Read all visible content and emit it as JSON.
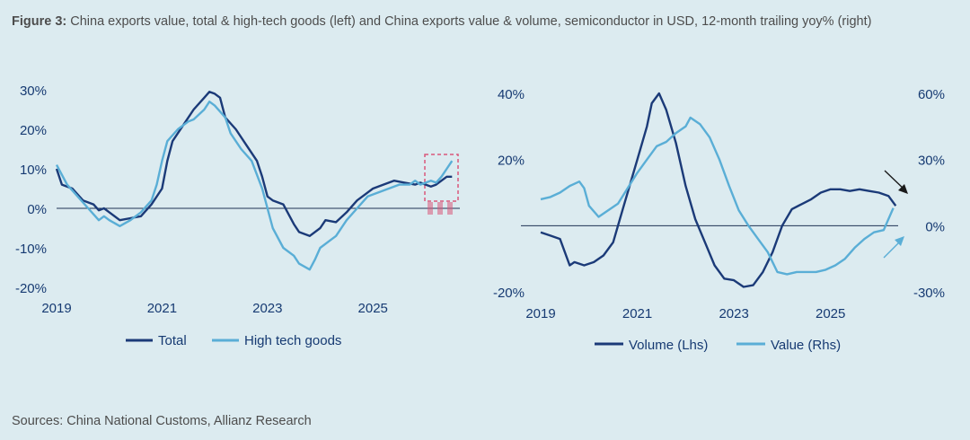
{
  "figure": {
    "label": "Figure 3:",
    "title": "China exports value, total & high-tech goods (left) and China exports value & volume, semiconductor in USD, 12-month trailing yoy% (right)",
    "source": "Sources: China National Customs, Allianz Research"
  },
  "colors": {
    "dark": "#1b3a78",
    "light": "#5aaed6",
    "annot": "#d9577a",
    "zero": "#1f3355"
  },
  "chart_data": [
    {
      "type": "line",
      "ylim": [
        -20,
        30
      ],
      "xlim": [
        2019,
        2026.7
      ],
      "y_ticks": [
        {
          "v": 30,
          "t": "30%"
        },
        {
          "v": 20,
          "t": "20%"
        },
        {
          "v": 10,
          "t": "10%"
        },
        {
          "v": 0,
          "t": "0%"
        },
        {
          "v": -10,
          "t": "-10%"
        },
        {
          "v": -20,
          "t": "-20%"
        }
      ],
      "x_ticks": [
        {
          "v": 2019,
          "t": "2019"
        },
        {
          "v": 2021,
          "t": "2021"
        },
        {
          "v": 2023,
          "t": "2023"
        },
        {
          "v": 2025,
          "t": "2025"
        }
      ],
      "legend_position": "bottom",
      "annotation": "dashed box highlighting the latest values",
      "series": [
        {
          "name": "Total",
          "color": "dark",
          "points": [
            [
              2019.0,
              10
            ],
            [
              2019.1,
              6
            ],
            [
              2019.3,
              5
            ],
            [
              2019.5,
              2
            ],
            [
              2019.7,
              1
            ],
            [
              2019.8,
              -0.5
            ],
            [
              2019.9,
              0
            ],
            [
              2020.0,
              -1
            ],
            [
              2020.2,
              -3
            ],
            [
              2020.4,
              -2.5
            ],
            [
              2020.6,
              -2
            ],
            [
              2020.8,
              1
            ],
            [
              2021.0,
              5
            ],
            [
              2021.1,
              12
            ],
            [
              2021.2,
              17
            ],
            [
              2021.4,
              21
            ],
            [
              2021.6,
              25
            ],
            [
              2021.8,
              28
            ],
            [
              2021.9,
              29.5
            ],
            [
              2022.0,
              29
            ],
            [
              2022.1,
              28
            ],
            [
              2022.2,
              23
            ],
            [
              2022.4,
              20
            ],
            [
              2022.6,
              16
            ],
            [
              2022.8,
              12
            ],
            [
              2022.9,
              8
            ],
            [
              2023.0,
              3
            ],
            [
              2023.1,
              2
            ],
            [
              2023.3,
              1
            ],
            [
              2023.5,
              -4
            ],
            [
              2023.6,
              -6
            ],
            [
              2023.8,
              -7
            ],
            [
              2024.0,
              -5
            ],
            [
              2024.1,
              -3
            ],
            [
              2024.3,
              -3.5
            ],
            [
              2024.5,
              -1
            ],
            [
              2024.7,
              2
            ],
            [
              2024.9,
              4
            ],
            [
              2025.0,
              5
            ],
            [
              2025.2,
              6
            ],
            [
              2025.4,
              7
            ],
            [
              2025.6,
              6.5
            ],
            [
              2025.8,
              6
            ],
            [
              2025.9,
              6.5
            ],
            [
              2026.0,
              6
            ],
            [
              2026.1,
              5.5
            ],
            [
              2026.2,
              6
            ],
            [
              2026.3,
              7
            ],
            [
              2026.4,
              8
            ],
            [
              2026.5,
              8
            ]
          ]
        },
        {
          "name": "High tech goods",
          "color": "light",
          "points": [
            [
              2019.0,
              11
            ],
            [
              2019.2,
              6
            ],
            [
              2019.4,
              3
            ],
            [
              2019.6,
              0
            ],
            [
              2019.8,
              -3
            ],
            [
              2019.9,
              -2
            ],
            [
              2020.0,
              -3
            ],
            [
              2020.2,
              -4.5
            ],
            [
              2020.4,
              -3
            ],
            [
              2020.6,
              -1
            ],
            [
              2020.8,
              2
            ],
            [
              2020.9,
              6
            ],
            [
              2021.0,
              12
            ],
            [
              2021.1,
              17
            ],
            [
              2021.3,
              20
            ],
            [
              2021.5,
              22
            ],
            [
              2021.6,
              22.5
            ],
            [
              2021.8,
              25
            ],
            [
              2021.9,
              27
            ],
            [
              2022.0,
              26
            ],
            [
              2022.2,
              23
            ],
            [
              2022.3,
              19
            ],
            [
              2022.5,
              15
            ],
            [
              2022.7,
              12
            ],
            [
              2022.9,
              5
            ],
            [
              2023.0,
              0
            ],
            [
              2023.1,
              -5
            ],
            [
              2023.3,
              -10
            ],
            [
              2023.5,
              -12
            ],
            [
              2023.6,
              -14
            ],
            [
              2023.8,
              -15.5
            ],
            [
              2023.9,
              -13
            ],
            [
              2024.0,
              -10
            ],
            [
              2024.2,
              -8
            ],
            [
              2024.3,
              -7
            ],
            [
              2024.5,
              -3
            ],
            [
              2024.7,
              0
            ],
            [
              2024.9,
              3
            ],
            [
              2025.1,
              4
            ],
            [
              2025.3,
              5
            ],
            [
              2025.5,
              6
            ],
            [
              2025.7,
              6
            ],
            [
              2025.8,
              7
            ],
            [
              2025.9,
              6
            ],
            [
              2026.1,
              7
            ],
            [
              2026.2,
              6.5
            ],
            [
              2026.3,
              8
            ],
            [
              2026.4,
              10
            ],
            [
              2026.5,
              12
            ]
          ]
        }
      ]
    },
    {
      "type": "line",
      "ylim_left": [
        -20,
        40
      ],
      "ylim_right": [
        -30,
        60
      ],
      "xlim": [
        2019,
        2026.4
      ],
      "y_ticks_left": [
        {
          "v": 40,
          "t": "40%"
        },
        {
          "v": 20,
          "t": "20%"
        },
        {
          "v": -20,
          "t": "-20%"
        }
      ],
      "y_ticks_right": [
        {
          "v": 60,
          "t": "60%"
        },
        {
          "v": 30,
          "t": "30%"
        },
        {
          "v": 0,
          "t": "0%"
        },
        {
          "v": -30,
          "t": "-30%"
        }
      ],
      "x_ticks": [
        {
          "v": 2019,
          "t": "2019"
        },
        {
          "v": 2021,
          "t": "2021"
        },
        {
          "v": 2023,
          "t": "2023"
        },
        {
          "v": 2025,
          "t": "2025"
        }
      ],
      "legend_position": "bottom",
      "annotation": "arrows marking the latest values",
      "series": [
        {
          "name": "Volume (Lhs)",
          "color": "dark",
          "axis": "left",
          "points": [
            [
              2019.0,
              -2
            ],
            [
              2019.2,
              -3
            ],
            [
              2019.4,
              -4
            ],
            [
              2019.6,
              -12
            ],
            [
              2019.7,
              -11
            ],
            [
              2019.9,
              -12
            ],
            [
              2020.1,
              -11
            ],
            [
              2020.3,
              -9
            ],
            [
              2020.5,
              -5
            ],
            [
              2020.7,
              5
            ],
            [
              2020.9,
              15
            ],
            [
              2021.0,
              20
            ],
            [
              2021.2,
              30
            ],
            [
              2021.3,
              37
            ],
            [
              2021.45,
              40
            ],
            [
              2021.6,
              35
            ],
            [
              2021.8,
              25
            ],
            [
              2022.0,
              12
            ],
            [
              2022.2,
              2
            ],
            [
              2022.4,
              -5
            ],
            [
              2022.6,
              -12
            ],
            [
              2022.8,
              -16
            ],
            [
              2023.0,
              -16.5
            ],
            [
              2023.2,
              -18.5
            ],
            [
              2023.4,
              -18
            ],
            [
              2023.6,
              -14
            ],
            [
              2023.8,
              -8
            ],
            [
              2024.0,
              0
            ],
            [
              2024.2,
              5
            ],
            [
              2024.4,
              6.5
            ],
            [
              2024.6,
              8
            ],
            [
              2024.8,
              10
            ],
            [
              2025.0,
              11
            ],
            [
              2025.2,
              11
            ],
            [
              2025.4,
              10.5
            ],
            [
              2025.6,
              11
            ],
            [
              2025.8,
              10.5
            ],
            [
              2026.0,
              10
            ],
            [
              2026.2,
              9
            ],
            [
              2026.35,
              6
            ]
          ]
        },
        {
          "name": "Value (Rhs)",
          "color": "light",
          "axis": "right",
          "points": [
            [
              2019.0,
              12
            ],
            [
              2019.2,
              13
            ],
            [
              2019.4,
              15
            ],
            [
              2019.6,
              18
            ],
            [
              2019.8,
              20
            ],
            [
              2019.9,
              17
            ],
            [
              2020.0,
              9
            ],
            [
              2020.2,
              4
            ],
            [
              2020.4,
              7
            ],
            [
              2020.6,
              10
            ],
            [
              2020.8,
              17
            ],
            [
              2021.0,
              24
            ],
            [
              2021.2,
              30
            ],
            [
              2021.4,
              36
            ],
            [
              2021.6,
              38
            ],
            [
              2021.8,
              42
            ],
            [
              2022.0,
              45
            ],
            [
              2022.1,
              49
            ],
            [
              2022.3,
              46
            ],
            [
              2022.5,
              40
            ],
            [
              2022.7,
              30
            ],
            [
              2022.9,
              18
            ],
            [
              2023.1,
              7
            ],
            [
              2023.3,
              0
            ],
            [
              2023.5,
              -6
            ],
            [
              2023.7,
              -12
            ],
            [
              2023.9,
              -21
            ],
            [
              2024.1,
              -22
            ],
            [
              2024.3,
              -21
            ],
            [
              2024.5,
              -21
            ],
            [
              2024.7,
              -21
            ],
            [
              2024.9,
              -20
            ],
            [
              2025.1,
              -18
            ],
            [
              2025.3,
              -15
            ],
            [
              2025.5,
              -10
            ],
            [
              2025.7,
              -6
            ],
            [
              2025.9,
              -3
            ],
            [
              2026.1,
              -2
            ],
            [
              2026.3,
              8
            ]
          ]
        }
      ]
    }
  ]
}
